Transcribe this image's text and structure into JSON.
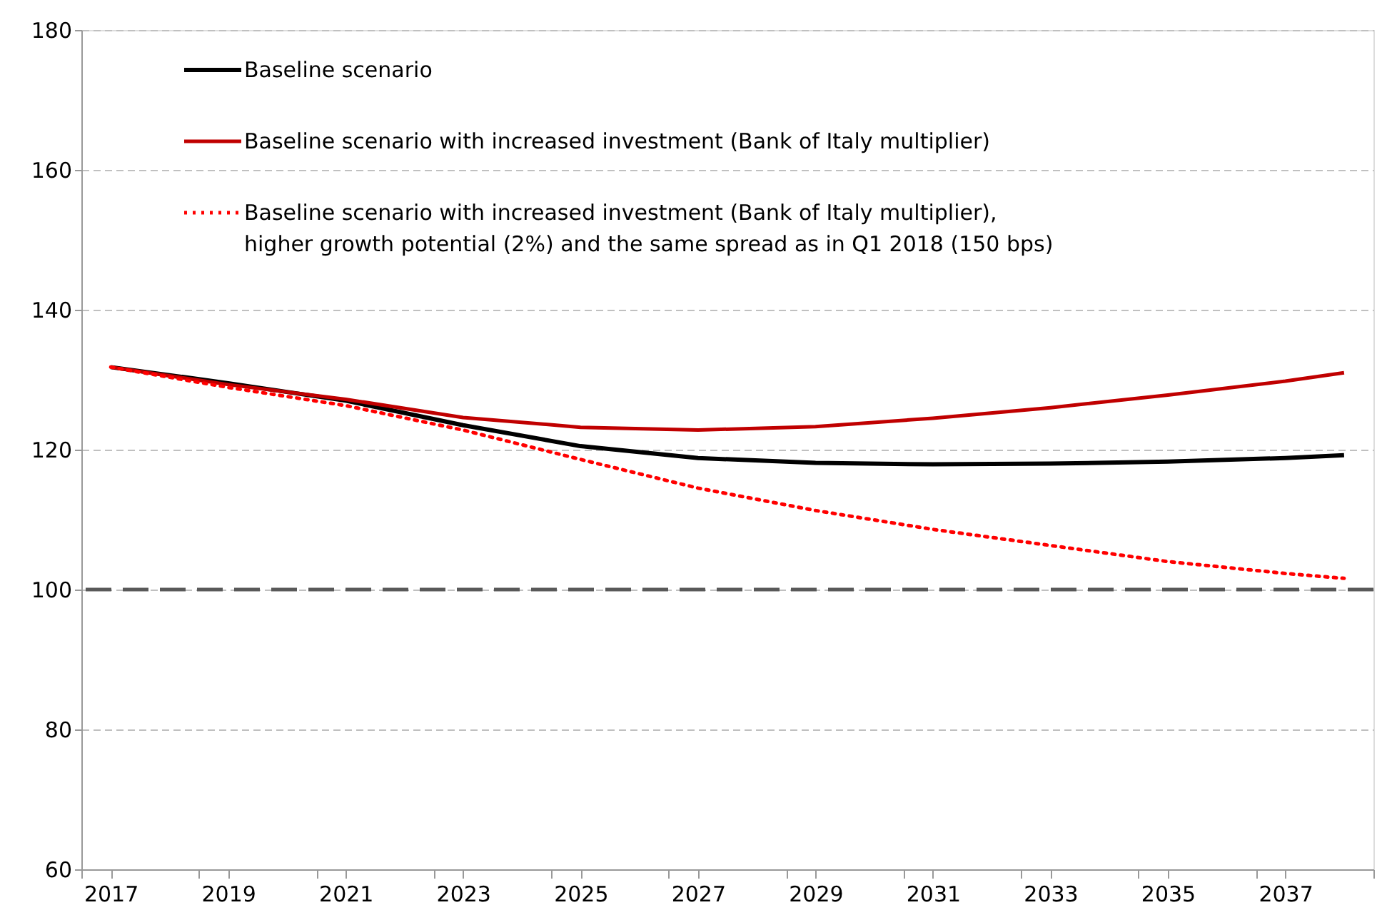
{
  "chart_data": {
    "type": "line",
    "x": [
      2017,
      2019,
      2021,
      2023,
      2025,
      2027,
      2029,
      2031,
      2033,
      2035,
      2037,
      2038
    ],
    "xlim": [
      2016.5,
      2038.5
    ],
    "xticks": [
      {
        "value": 2016.5,
        "label": null
      },
      2017,
      {
        "value": 2018.5,
        "label": null
      },
      2019,
      {
        "value": 2020.5,
        "label": null
      },
      2021,
      {
        "value": 2022.5,
        "label": null
      },
      2023,
      {
        "value": 2024.5,
        "label": null
      },
      2025,
      {
        "value": 2026.5,
        "label": null
      },
      2027,
      {
        "value": 2028.5,
        "label": null
      },
      2029,
      {
        "value": 2030.5,
        "label": null
      },
      2031,
      {
        "value": 2032.5,
        "label": null
      },
      2033,
      {
        "value": 2034.5,
        "label": null
      },
      2035,
      {
        "value": 2036.5,
        "label": null
      },
      2037,
      {
        "value": 2038.5,
        "label": null
      }
    ],
    "ylim": [
      60,
      180
    ],
    "yticks": [
      60,
      80,
      100,
      120,
      140,
      160,
      180
    ],
    "grid": "y",
    "legend": "top left",
    "series": [
      {
        "name": "Baseline scenario",
        "color": "#000000",
        "line_style": "solid",
        "values": [
          131.8,
          129.5,
          127.0,
          123.5,
          120.5,
          118.8,
          118.1,
          117.9,
          118.0,
          118.3,
          118.8,
          119.2
        ]
      },
      {
        "name": "Baseline scenario with increased investment (Bank of Italy multiplier)",
        "color": "#c00000",
        "line_style": "solid",
        "values": [
          131.8,
          129.3,
          127.2,
          124.6,
          123.2,
          122.8,
          123.3,
          124.5,
          126.0,
          127.8,
          129.8,
          131.0
        ]
      },
      {
        "name": "Baseline scenario with increased investment (Bank of Italy multiplier), higher growth potential (2%) and the same spread as in Q1 2018 (150 bps)",
        "color": "#ff0000",
        "line_style": "dotted",
        "values": [
          131.8,
          128.9,
          126.3,
          122.8,
          118.6,
          114.5,
          111.3,
          108.6,
          106.3,
          104.0,
          102.3,
          101.6
        ]
      }
    ],
    "ref_lines": [
      {
        "axis": "y",
        "value": 100,
        "label": null,
        "color": "#595959",
        "line_style": "dashed"
      }
    ]
  }
}
